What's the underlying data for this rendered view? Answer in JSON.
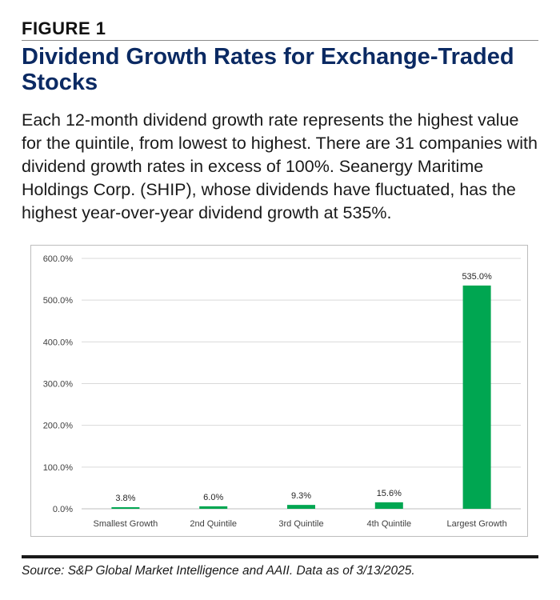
{
  "figure_label": "FIGURE 1",
  "title": "Dividend Growth Rates for Exchange-Traded Stocks",
  "description": "Each 12-month dividend growth rate represents the highest value for the quintile, from lowest to highest. There are 31 companies with dividend growth rates in excess of 100%. Seanergy Maritime Holdings Corp. (SHIP), whose dividends have fluctuated, has the highest year-over-year dividend growth at 535%.",
  "source": "Source: S&P Global Market Intelligence and AAII. Data as of 3/13/2025.",
  "chart_data": {
    "type": "bar",
    "categories": [
      "Smallest Growth",
      "2nd Quintile",
      "3rd Quintile",
      "4th Quintile",
      "Largest Growth"
    ],
    "values": [
      3.8,
      6.0,
      9.3,
      15.6,
      535.0
    ],
    "data_labels": [
      "3.8%",
      "6.0%",
      "9.3%",
      "15.6%",
      "535.0%"
    ],
    "yticks": [
      0,
      100,
      200,
      300,
      400,
      500,
      600
    ],
    "ytick_labels": [
      "0.0%",
      "100.0%",
      "200.0%",
      "300.0%",
      "400.0%",
      "500.0%",
      "600.0%"
    ],
    "ylim": [
      0,
      600
    ],
    "title": "",
    "xlabel": "",
    "ylabel": "",
    "grid": true,
    "bar_color": "#00a651"
  }
}
